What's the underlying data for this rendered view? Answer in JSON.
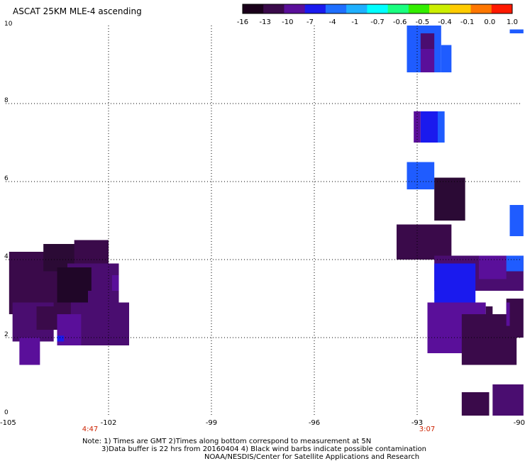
{
  "title": "ASCAT 25KM MLE-4 ascending",
  "colorbar": {
    "labels": [
      "-16",
      "-13",
      "-10",
      "-7",
      "-4",
      "-1",
      "-0.7",
      "-0.6",
      "-0.5",
      "-0.4",
      "-0.1",
      "0.0",
      "1.0"
    ],
    "colors": [
      "#1a001a",
      "#3a0a4a",
      "#5a0f9a",
      "#1a1aee",
      "#1f6fff",
      "#1fb0ff",
      "#00ffff",
      "#1aff80",
      "#33ee00",
      "#ccee00",
      "#ffcc00",
      "#ff7700",
      "#ff1a00"
    ]
  },
  "time_labels": {
    "left": "4:47",
    "right": "3:07",
    "color": "#cc2200"
  },
  "notes": {
    "line1": "Note: 1) Times are GMT 2)Times along bottom correspond to measurement at 5N",
    "line2": "3)Data buffer is 22 hrs from 20160404 4) Black wind barbs indicate possible contamination",
    "line3": "NOAA/NESDIS/Center for Satellite Applications and Research"
  },
  "chart_data": {
    "type": "heatmap",
    "title": "ASCAT 25KM MLE-4 ascending",
    "xlabel": "",
    "ylabel": "",
    "xlim": [
      -105,
      -90
    ],
    "ylim": [
      0,
      10
    ],
    "x_ticks": [
      -105,
      -102,
      -99,
      -96,
      -93,
      -90
    ],
    "x_tick_labels": [
      "-105",
      "-102",
      "-99",
      "-96",
      "-93",
      "-90"
    ],
    "y_ticks": [
      0,
      2,
      4,
      6,
      8,
      10
    ],
    "y_tick_labels": [
      "0",
      "2",
      "4",
      "6",
      "8",
      "10"
    ],
    "grid": true,
    "colorscale_labels": [
      "-16",
      "-13",
      "-10",
      "-7",
      "-4",
      "-1",
      "-0.7",
      "-0.6",
      "-0.5",
      "-0.4",
      "-0.1",
      "0.0",
      "1.0"
    ],
    "cells": [
      {
        "x0": -104.9,
        "x1": -103.0,
        "y0": 2.6,
        "y1": 4.2,
        "color": "#3a0a4a"
      },
      {
        "x0": -103.9,
        "x1": -102.0,
        "y0": 3.2,
        "y1": 4.4,
        "color": "#2b0a35"
      },
      {
        "x0": -103.0,
        "x1": -102.0,
        "y0": 3.9,
        "y1": 4.5,
        "color": "#3a0a4a"
      },
      {
        "x0": -103.2,
        "x1": -101.7,
        "y0": 2.3,
        "y1": 3.9,
        "color": "#4a0d70"
      },
      {
        "x0": -104.3,
        "x1": -103.1,
        "y0": 2.6,
        "y1": 3.7,
        "color": "#3a0a4a"
      },
      {
        "x0": -103.5,
        "x1": -102.5,
        "y0": 2.9,
        "y1": 3.8,
        "color": "#200628"
      },
      {
        "x0": -104.8,
        "x1": -103.6,
        "y0": 1.9,
        "y1": 2.9,
        "color": "#4a0d70"
      },
      {
        "x0": -104.6,
        "x1": -104.0,
        "y0": 1.3,
        "y1": 2.0,
        "color": "#5a0f9a"
      },
      {
        "x0": -104.1,
        "x1": -103.2,
        "y0": 2.2,
        "y1": 2.8,
        "color": "#3a0a4a"
      },
      {
        "x0": -103.5,
        "x1": -102.2,
        "y0": 1.8,
        "y1": 2.6,
        "color": "#5a0f9a"
      },
      {
        "x0": -102.8,
        "x1": -101.4,
        "y0": 1.8,
        "y1": 2.9,
        "color": "#4a0d70"
      },
      {
        "x0": -103.5,
        "x1": -103.3,
        "y0": 1.9,
        "y1": 2.05,
        "color": "#1a1aee"
      },
      {
        "x0": -102.6,
        "x1": -102.0,
        "y0": 2.6,
        "y1": 3.2,
        "color": "#4a0d70"
      },
      {
        "x0": -101.9,
        "x1": -101.7,
        "y0": 3.2,
        "y1": 3.6,
        "color": "#5a0f9a"
      },
      {
        "x0": -93.3,
        "x1": -92.3,
        "y0": 8.8,
        "y1": 10.0,
        "color": "#1f5cff"
      },
      {
        "x0": -92.3,
        "x1": -92.0,
        "y0": 8.8,
        "y1": 9.5,
        "color": "#1f5cff"
      },
      {
        "x0": -92.9,
        "x1": -92.5,
        "y0": 8.8,
        "y1": 9.4,
        "color": "#5a0f9a"
      },
      {
        "x0": -92.9,
        "x1": -92.5,
        "y0": 9.4,
        "y1": 9.8,
        "color": "#4a0d70"
      },
      {
        "x0": -90.3,
        "x1": -89.9,
        "y0": 9.8,
        "y1": 9.9,
        "color": "#1f5cff"
      },
      {
        "x0": -92.9,
        "x1": -92.4,
        "y0": 7.0,
        "y1": 7.8,
        "color": "#1a1aee"
      },
      {
        "x0": -93.1,
        "x1": -92.9,
        "y0": 7.0,
        "y1": 7.8,
        "color": "#5a0f9a"
      },
      {
        "x0": -92.4,
        "x1": -92.2,
        "y0": 7.0,
        "y1": 7.8,
        "color": "#1f5cff"
      },
      {
        "x0": -93.3,
        "x1": -92.5,
        "y0": 5.8,
        "y1": 6.5,
        "color": "#1f5cff"
      },
      {
        "x0": -92.5,
        "x1": -91.6,
        "y0": 5.0,
        "y1": 6.1,
        "color": "#2b0a35"
      },
      {
        "x0": -90.3,
        "x1": -89.9,
        "y0": 4.6,
        "y1": 5.4,
        "color": "#1f5cff"
      },
      {
        "x0": -93.6,
        "x1": -92.0,
        "y0": 4.0,
        "y1": 4.9,
        "color": "#3a0a4a"
      },
      {
        "x0": -92.5,
        "x1": -89.9,
        "y0": 3.2,
        "y1": 4.1,
        "color": "#4a0d70"
      },
      {
        "x0": -92.5,
        "x1": -91.3,
        "y0": 2.9,
        "y1": 3.9,
        "color": "#1a1aee"
      },
      {
        "x0": -91.2,
        "x1": -90.4,
        "y0": 3.5,
        "y1": 4.1,
        "color": "#5a0f9a"
      },
      {
        "x0": -90.4,
        "x1": -89.9,
        "y0": 3.7,
        "y1": 4.1,
        "color": "#1f5cff"
      },
      {
        "x0": -92.7,
        "x1": -91.0,
        "y0": 1.6,
        "y1": 2.9,
        "color": "#5a0f9a"
      },
      {
        "x0": -91.7,
        "x1": -90.1,
        "y0": 1.3,
        "y1": 2.6,
        "color": "#3a0a4a"
      },
      {
        "x0": -91.0,
        "x1": -90.8,
        "y0": 2.0,
        "y1": 2.8,
        "color": "#3a0a4a"
      },
      {
        "x0": -90.4,
        "x1": -89.9,
        "y0": 2.0,
        "y1": 3.0,
        "color": "#3a0a4a"
      },
      {
        "x0": -90.4,
        "x1": -90.3,
        "y0": 2.3,
        "y1": 2.9,
        "color": "#5a0f9a"
      },
      {
        "x0": -91.7,
        "x1": -90.9,
        "y0": 0.0,
        "y1": 0.6,
        "color": "#3a0a4a"
      },
      {
        "x0": -90.8,
        "x1": -89.9,
        "y0": 0.0,
        "y1": 0.8,
        "color": "#4a0d70"
      }
    ]
  }
}
